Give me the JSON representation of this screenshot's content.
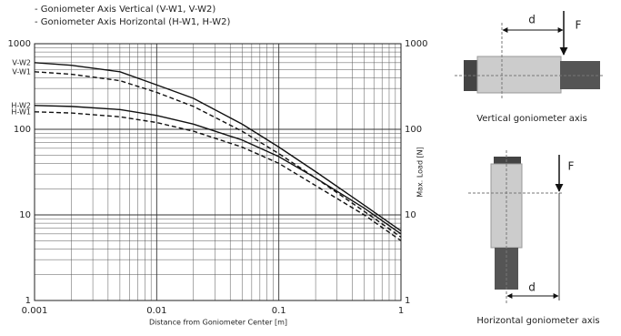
{
  "chart_data": {
    "type": "line",
    "legend_lines": [
      "- Goniometer Axis Vertical (V-W1, V-W2)",
      "- Goniometer Axis Horizontal (H-W1, H-W2)"
    ],
    "xlabel": "Distance from Goniometer Center [m]",
    "y2label": "Max. Load [N]",
    "xscale": "log",
    "yscale": "log",
    "grid": true,
    "xlim": [
      0.001,
      1
    ],
    "xticks": [
      0.001,
      0.01,
      0.1,
      1
    ],
    "xminorticks": [
      0.002,
      0.003,
      0.004,
      0.005,
      0.006,
      0.007,
      0.008,
      0.009,
      0.02,
      0.03,
      0.04,
      0.05,
      0.06,
      0.07,
      0.08,
      0.09,
      0.2,
      0.3,
      0.4,
      0.5,
      0.6,
      0.7,
      0.8,
      0.9
    ],
    "ylim": [
      1,
      1000
    ],
    "yticks": [
      1,
      10,
      100,
      1000
    ],
    "yminorticks": [
      2,
      3,
      4,
      5,
      6,
      7,
      8,
      9,
      20,
      30,
      40,
      50,
      60,
      70,
      80,
      90,
      200,
      300,
      400,
      500,
      600,
      700,
      800,
      900
    ],
    "y2lim": [
      1,
      1000
    ],
    "y2ticks": [
      1,
      10,
      100,
      1000
    ],
    "x": [
      0.001,
      0.002,
      0.005,
      0.01,
      0.02,
      0.05,
      0.1,
      0.2,
      0.5,
      1
    ],
    "series": [
      {
        "name": "V-W2",
        "color": "#111111",
        "dashed": false,
        "values": [
          600,
          560,
          470,
          330,
          230,
          115,
          62,
          32,
          13,
          6.5
        ]
      },
      {
        "name": "V-W1",
        "color": "#111111",
        "dashed": true,
        "values": [
          470,
          440,
          370,
          270,
          185,
          95,
          52,
          27,
          11,
          5.5
        ]
      },
      {
        "name": "H-W2",
        "color": "#111111",
        "dashed": false,
        "values": [
          190,
          185,
          170,
          145,
          115,
          75,
          48,
          27,
          12,
          6
        ]
      },
      {
        "name": "H-W1",
        "color": "#111111",
        "dashed": true,
        "values": [
          160,
          155,
          140,
          120,
          95,
          62,
          40,
          22,
          10,
          5
        ]
      }
    ]
  },
  "diagrams": [
    {
      "caption": "Vertical goniometer axis",
      "d": "d",
      "f": "F"
    },
    {
      "caption": "Horizontal goniometer axis",
      "d": "d",
      "f": "F"
    }
  ]
}
